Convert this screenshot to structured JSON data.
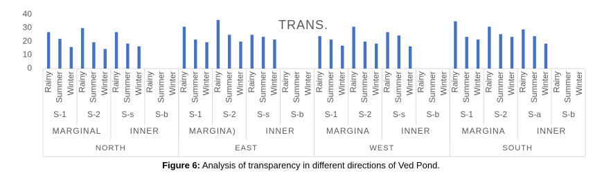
{
  "chart_data": {
    "type": "bar",
    "title": "TRANS.",
    "categories": [
      "Rainy",
      "Summer",
      "Winter",
      "Rainy",
      "Summer",
      "Winter",
      "Rainy",
      "Summer",
      "Winter",
      "Rainy",
      "Summer",
      "Winter",
      "Rainy",
      "Summer",
      "Winter",
      "Rainy",
      "Summer",
      "Winter",
      "Rainy",
      "Summer",
      "Winter",
      "Rainy",
      "Summer",
      "Winter",
      "Rainy",
      "Summer",
      "Winter",
      "Rainy",
      "Summer",
      "Winter",
      "Rainy",
      "Summer",
      "Winter",
      "Rainy",
      "Summer",
      "Winter",
      "Rainy",
      "Summer",
      "Winter",
      "Rainy",
      "Summer",
      "Winter",
      "Rainy",
      "Summer",
      "Winter",
      "Rainy",
      "Summer",
      "Winter"
    ],
    "values": [
      27,
      22,
      16,
      30,
      19.5,
      14.5,
      27,
      18.5,
      16.5,
      null,
      null,
      null,
      31,
      21.5,
      19.5,
      36,
      25,
      20,
      25,
      23.5,
      21.5,
      null,
      null,
      null,
      24,
      21.5,
      17,
      31,
      20,
      18.5,
      27,
      24.5,
      16.5,
      null,
      null,
      null,
      35,
      23.5,
      21.5,
      31,
      25.5,
      23.5,
      29,
      24,
      18.5,
      null,
      null,
      null
    ],
    "stations": [
      "S-1",
      "S-2",
      "S-s",
      "S-b",
      "S-1",
      "S-2",
      "S-s",
      "S-b",
      "S-1",
      "S-2",
      "S-s",
      "S-b",
      "S-1",
      "S-2",
      "S-a",
      "S-b"
    ],
    "zones": [
      "MARGINAL",
      "INNER",
      "MARGINA)",
      "INNER",
      "MARGINA",
      "INNER",
      "MARGINA",
      "INNER"
    ],
    "directions": [
      "NORTH",
      "EAST",
      "WEST",
      "SOUTH"
    ],
    "color": "#4472c4",
    "ylim": [
      0,
      40
    ],
    "yticks": [
      0,
      10,
      20,
      30,
      40
    ]
  },
  "caption": {
    "label": "Figure 6:",
    "text": "Analysis of transparency in different directions of Ved Pond."
  }
}
